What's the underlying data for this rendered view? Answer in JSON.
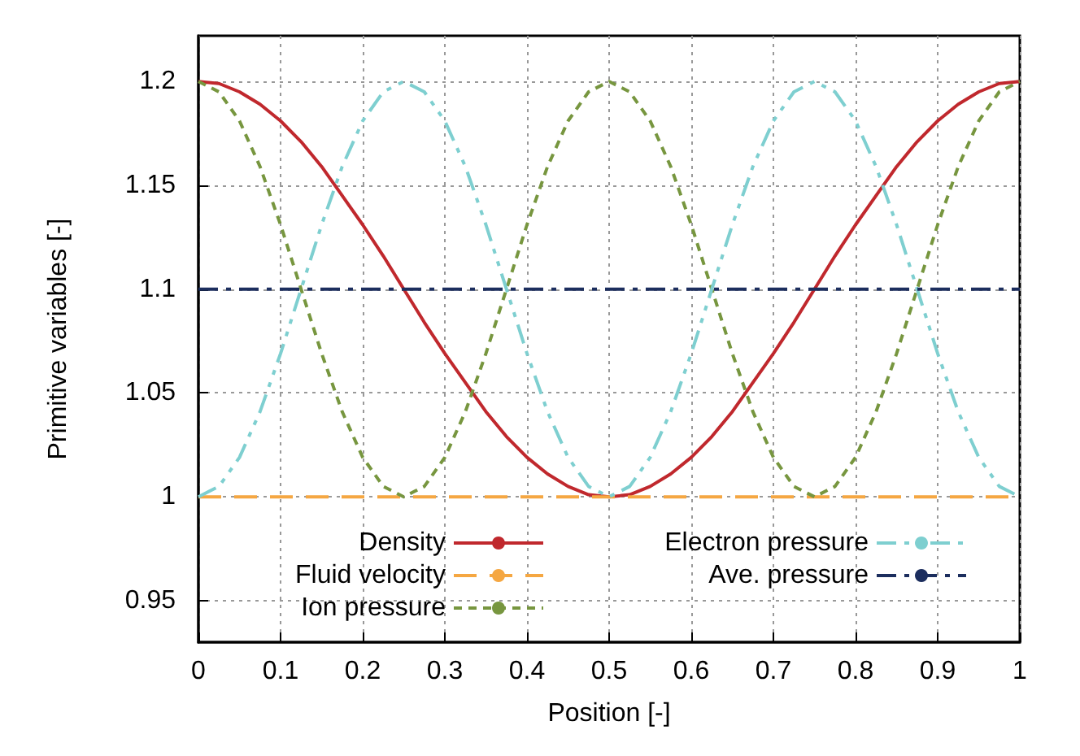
{
  "chart_data": {
    "type": "line",
    "xlabel": "Position [-]",
    "ylabel": "Primitive variables [-]",
    "x": [
      0,
      0.025,
      0.05,
      0.075,
      0.1,
      0.125,
      0.15,
      0.175,
      0.2,
      0.225,
      0.25,
      0.275,
      0.3,
      0.325,
      0.35,
      0.375,
      0.4,
      0.425,
      0.45,
      0.475,
      0.5,
      0.525,
      0.55,
      0.575,
      0.6,
      0.625,
      0.65,
      0.675,
      0.7,
      0.725,
      0.75,
      0.775,
      0.8,
      0.825,
      0.85,
      0.875,
      0.9,
      0.925,
      0.95,
      0.975,
      1
    ],
    "series": [
      {
        "name": "Density",
        "color": "#c0282d",
        "line_style": "solid",
        "values": [
          1.2,
          1.199,
          1.195,
          1.189,
          1.181,
          1.171,
          1.159,
          1.145,
          1.131,
          1.116,
          1.1,
          1.084,
          1.069,
          1.055,
          1.041,
          1.029,
          1.019,
          1.011,
          1.005,
          1.001,
          1.0,
          1.001,
          1.005,
          1.011,
          1.019,
          1.029,
          1.041,
          1.055,
          1.069,
          1.084,
          1.1,
          1.116,
          1.131,
          1.145,
          1.159,
          1.171,
          1.181,
          1.189,
          1.195,
          1.199,
          1.2
        ]
      },
      {
        "name": "Fluid velocity",
        "color": "#f5a742",
        "line_style": "dashed",
        "values": [
          1.0,
          1.0,
          1.0,
          1.0,
          1.0,
          1.0,
          1.0,
          1.0,
          1.0,
          1.0,
          1.0,
          1.0,
          1.0,
          1.0,
          1.0,
          1.0,
          1.0,
          1.0,
          1.0,
          1.0,
          1.0,
          1.0,
          1.0,
          1.0,
          1.0,
          1.0,
          1.0,
          1.0,
          1.0,
          1.0,
          1.0,
          1.0,
          1.0,
          1.0,
          1.0,
          1.0,
          1.0,
          1.0,
          1.0,
          1.0,
          1.0
        ]
      },
      {
        "name": "Ion pressure",
        "color": "#77963f",
        "line_style": "dotted",
        "values": [
          1.2,
          1.195,
          1.181,
          1.159,
          1.131,
          1.1,
          1.069,
          1.041,
          1.019,
          1.005,
          1.0,
          1.005,
          1.019,
          1.041,
          1.069,
          1.1,
          1.131,
          1.159,
          1.181,
          1.195,
          1.2,
          1.195,
          1.181,
          1.159,
          1.131,
          1.1,
          1.069,
          1.041,
          1.019,
          1.005,
          1.0,
          1.005,
          1.019,
          1.041,
          1.069,
          1.1,
          1.131,
          1.159,
          1.181,
          1.195,
          1.2
        ]
      },
      {
        "name": "Electron pressure",
        "color": "#7ecfd0",
        "line_style": "dashdotdot",
        "values": [
          1.0,
          1.005,
          1.019,
          1.041,
          1.069,
          1.1,
          1.131,
          1.159,
          1.181,
          1.195,
          1.2,
          1.195,
          1.181,
          1.159,
          1.131,
          1.1,
          1.069,
          1.041,
          1.019,
          1.005,
          1.0,
          1.005,
          1.019,
          1.041,
          1.069,
          1.1,
          1.131,
          1.159,
          1.181,
          1.195,
          1.2,
          1.195,
          1.181,
          1.159,
          1.131,
          1.1,
          1.069,
          1.041,
          1.019,
          1.005,
          1.0
        ]
      },
      {
        "name": "Ave. pressure",
        "color": "#1c2e5e",
        "line_style": "dashdot",
        "values": [
          1.1,
          1.1,
          1.1,
          1.1,
          1.1,
          1.1,
          1.1,
          1.1,
          1.1,
          1.1,
          1.1,
          1.1,
          1.1,
          1.1,
          1.1,
          1.1,
          1.1,
          1.1,
          1.1,
          1.1,
          1.1,
          1.1,
          1.1,
          1.1,
          1.1,
          1.1,
          1.1,
          1.1,
          1.1,
          1.1,
          1.1,
          1.1,
          1.1,
          1.1,
          1.1,
          1.1,
          1.1,
          1.1,
          1.1,
          1.1,
          1.1
        ]
      }
    ],
    "xlim": [
      0,
      1
    ],
    "xticks": [
      0,
      0.1,
      0.2,
      0.3,
      0.4,
      0.5,
      0.6,
      0.7,
      0.8,
      0.9,
      1
    ],
    "ylim": [
      0.93,
      1.222
    ],
    "yticks": [
      0.95,
      1,
      1.05,
      1.1,
      1.15,
      1.2
    ],
    "grid": true,
    "legend": "bottom"
  }
}
